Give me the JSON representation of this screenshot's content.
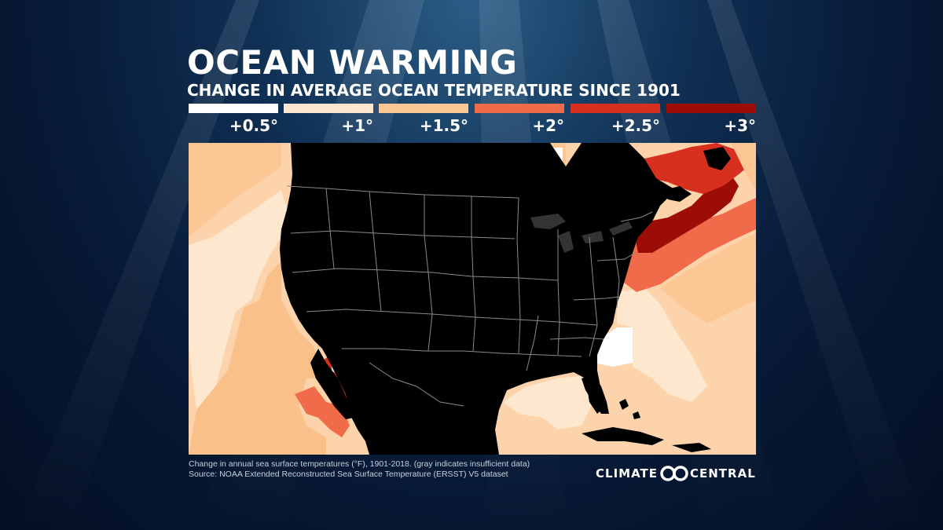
{
  "header": {
    "title": "OCEAN WARMING",
    "subtitle": "CHANGE IN AVERAGE OCEAN TEMPERATURE SINCE 1901"
  },
  "legend": [
    {
      "label": "+0.5°",
      "color": "#ffffff"
    },
    {
      "label": "+1°",
      "color": "#fde7cf"
    },
    {
      "label": "+1.5°",
      "color": "#fcc795"
    },
    {
      "label": "+2°",
      "color": "#ef6b4a"
    },
    {
      "label": "+2.5°",
      "color": "#d7301f"
    },
    {
      "label": "+3°",
      "color": "#9c0d08"
    }
  ],
  "map": {
    "land_color": "#000000",
    "border_color": "#8a8a8a",
    "base_ocean_color": "#fcd3aa"
  },
  "footer": {
    "note": "Change in annual sea surface temperatures (°F), 1901-2018. (gray indicates insufficient data)",
    "source": "Source: NOAA Extended Reconstructed Sea Surface Temperature (ERSST) V5 dataset"
  },
  "logo": {
    "left_word": "CLIMATE",
    "right_word": "CENTRAL",
    "mark": "infinity-logo-icon"
  }
}
